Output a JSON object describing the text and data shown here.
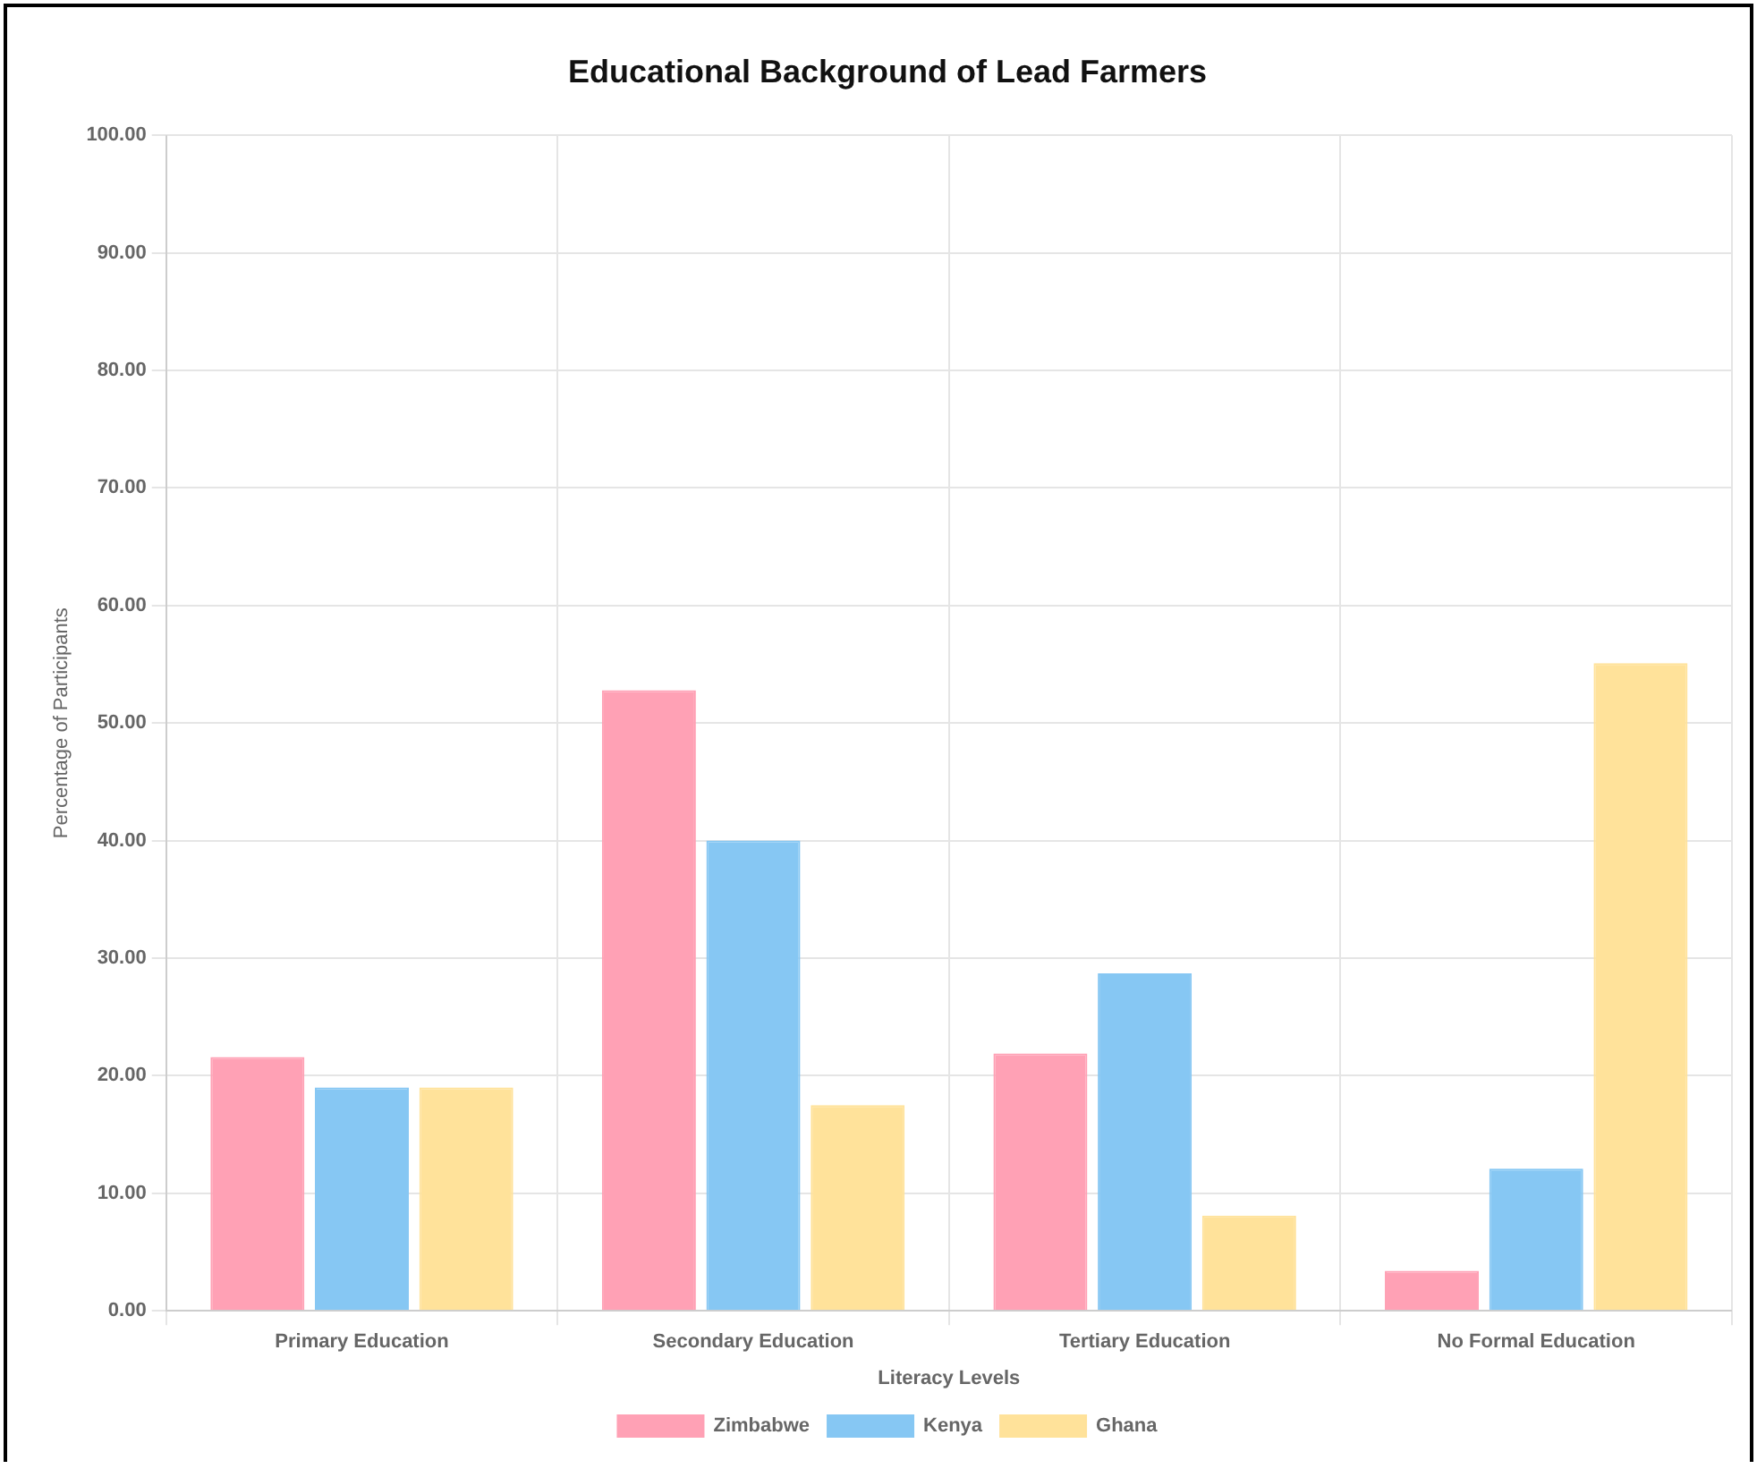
{
  "chart_data": {
    "type": "bar",
    "title": "Educational Background of Lead Farmers",
    "xlabel": "Literacy Levels",
    "ylabel": "Percentage of Participants",
    "categories": [
      "Primary Education",
      "Secondary Education",
      "Tertiary Education",
      "No Formal Education"
    ],
    "series": [
      {
        "name": "Zimbabwe",
        "color": "#ffa1b5",
        "values": [
          21.6,
          52.8,
          21.9,
          3.4
        ]
      },
      {
        "name": "Kenya",
        "color": "#86c7f3",
        "values": [
          19.0,
          40.0,
          28.7,
          12.1
        ]
      },
      {
        "name": "Ghana",
        "color": "#ffe29a",
        "values": [
          19.0,
          17.5,
          8.1,
          55.1
        ]
      }
    ],
    "ylim": [
      0,
      100
    ],
    "yticks": [
      {
        "value": 0,
        "label": "0.00"
      },
      {
        "value": 10,
        "label": "10.00"
      },
      {
        "value": 20,
        "label": "20.00"
      },
      {
        "value": 30,
        "label": "30.00"
      },
      {
        "value": 40,
        "label": "40.00"
      },
      {
        "value": 50,
        "label": "50.00"
      },
      {
        "value": 60,
        "label": "60.00"
      },
      {
        "value": 70,
        "label": "70.00"
      },
      {
        "value": 80,
        "label": "80.00"
      },
      {
        "value": 90,
        "label": "90.00"
      },
      {
        "value": 100,
        "label": "100.00"
      }
    ],
    "grid": true,
    "legend": "bottom"
  }
}
